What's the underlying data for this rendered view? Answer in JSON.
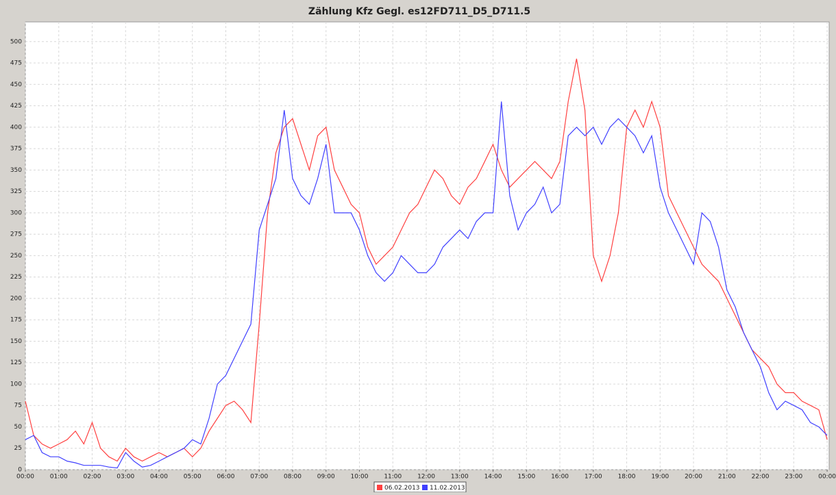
{
  "chart_data": {
    "type": "line",
    "title": "Zählung Kfz Gegl. es12FD711_D5_D711.5",
    "x": [
      0,
      0.25,
      0.5,
      0.75,
      1,
      1.25,
      1.5,
      1.75,
      2,
      2.25,
      2.5,
      2.75,
      3,
      3.25,
      3.5,
      3.75,
      4,
      4.25,
      4.5,
      4.75,
      5,
      5.25,
      5.5,
      5.75,
      6,
      6.25,
      6.5,
      6.75,
      7,
      7.25,
      7.5,
      7.75,
      8,
      8.25,
      8.5,
      8.75,
      9,
      9.25,
      9.5,
      9.75,
      10,
      10.25,
      10.5,
      10.75,
      11,
      11.25,
      11.5,
      11.75,
      12,
      12.25,
      12.5,
      12.75,
      13,
      13.25,
      13.5,
      13.75,
      14,
      14.25,
      14.5,
      14.75,
      15,
      15.25,
      15.5,
      15.75,
      16,
      16.25,
      16.5,
      16.75,
      17,
      17.25,
      17.5,
      17.75,
      18,
      18.25,
      18.5,
      18.75,
      19,
      19.25,
      19.5,
      19.75,
      20,
      20.25,
      20.5,
      20.75,
      21,
      21.25,
      21.5,
      21.75,
      22,
      22.25,
      22.5,
      22.75,
      23,
      23.25,
      23.5,
      23.75,
      24
    ],
    "series": [
      {
        "name": "06.02.2013",
        "color": "#ff4040",
        "values": [
          80,
          40,
          30,
          25,
          30,
          35,
          45,
          30,
          55,
          25,
          15,
          10,
          25,
          15,
          10,
          15,
          20,
          15,
          20,
          25,
          15,
          25,
          45,
          60,
          75,
          80,
          70,
          55,
          170,
          300,
          370,
          400,
          410,
          380,
          350,
          390,
          400,
          350,
          330,
          310,
          300,
          260,
          240,
          250,
          260,
          280,
          300,
          310,
          330,
          350,
          340,
          320,
          310,
          330,
          340,
          360,
          380,
          350,
          330,
          340,
          350,
          360,
          350,
          340,
          360,
          430,
          480,
          420,
          250,
          220,
          250,
          300,
          400,
          420,
          400,
          430,
          400,
          320,
          300,
          280,
          260,
          240,
          230,
          220,
          200,
          180,
          160,
          140,
          130,
          120,
          100,
          90,
          90,
          80,
          75,
          70,
          35
        ]
      },
      {
        "name": "11.02.2013",
        "color": "#4040ff",
        "values": [
          35,
          40,
          20,
          15,
          15,
          10,
          8,
          5,
          5,
          5,
          3,
          2,
          20,
          10,
          3,
          5,
          10,
          15,
          20,
          25,
          35,
          30,
          60,
          100,
          110,
          130,
          150,
          170,
          280,
          310,
          340,
          420,
          340,
          320,
          310,
          340,
          380,
          300,
          300,
          300,
          280,
          250,
          230,
          220,
          230,
          250,
          240,
          230,
          230,
          240,
          260,
          270,
          280,
          270,
          290,
          300,
          300,
          430,
          320,
          280,
          300,
          310,
          330,
          300,
          310,
          390,
          400,
          390,
          400,
          380,
          400,
          410,
          400,
          390,
          370,
          390,
          330,
          300,
          280,
          260,
          240,
          300,
          290,
          260,
          210,
          190,
          160,
          140,
          120,
          90,
          70,
          80,
          75,
          70,
          55,
          50,
          40
        ]
      }
    ],
    "xlim": [
      0,
      24.06
    ],
    "ylim": [
      0,
      523
    ],
    "xticks": [
      {
        "value": 0,
        "label": "00:00"
      },
      {
        "value": 1,
        "label": "01:00"
      },
      {
        "value": 2,
        "label": "02:00"
      },
      {
        "value": 3,
        "label": "03:00"
      },
      {
        "value": 4,
        "label": "04:00"
      },
      {
        "value": 5,
        "label": "05:00"
      },
      {
        "value": 6,
        "label": "06:00"
      },
      {
        "value": 7,
        "label": "07:00"
      },
      {
        "value": 8,
        "label": "08:00"
      },
      {
        "value": 9,
        "label": "09:00"
      },
      {
        "value": 10,
        "label": "10:00"
      },
      {
        "value": 11,
        "label": "11:00"
      },
      {
        "value": 12,
        "label": "12:00"
      },
      {
        "value": 13,
        "label": "13:00"
      },
      {
        "value": 14,
        "label": "14:00"
      },
      {
        "value": 15,
        "label": "15:00"
      },
      {
        "value": 16,
        "label": "16:00"
      },
      {
        "value": 17,
        "label": "17:00"
      },
      {
        "value": 18,
        "label": "18:00"
      },
      {
        "value": 19,
        "label": "19:00"
      },
      {
        "value": 20,
        "label": "20:00"
      },
      {
        "value": 21,
        "label": "21:00"
      },
      {
        "value": 22,
        "label": "22:00"
      },
      {
        "value": 23,
        "label": "23:00"
      },
      {
        "value": 24,
        "label": "00:00"
      }
    ],
    "yticks": [
      0,
      25,
      50,
      75,
      100,
      125,
      150,
      175,
      200,
      225,
      250,
      275,
      300,
      325,
      350,
      375,
      400,
      425,
      450,
      475,
      500
    ],
    "grid": true
  }
}
